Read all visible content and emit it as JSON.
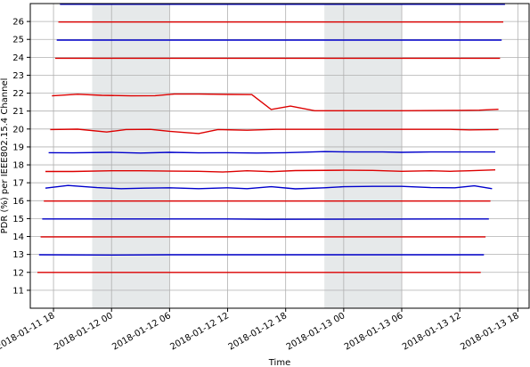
{
  "chart_data": {
    "type": "line",
    "xlabel": "Time",
    "ylabel": "PDR (%) per IEEE802.15.4 Channel",
    "x_axis": "datetime",
    "xlim": [
      "2018-01-11T15:36",
      "2018-01-13T19:10"
    ],
    "ylim": [
      10,
      27
    ],
    "grid": true,
    "legend": "none",
    "x_ticks": [
      {
        "t": "2018-01-11T18:00",
        "label": "2018-01-11 18"
      },
      {
        "t": "2018-01-12T00:00",
        "label": "2018-01-12 00"
      },
      {
        "t": "2018-01-12T06:00",
        "label": "2018-01-12 06"
      },
      {
        "t": "2018-01-12T12:00",
        "label": "2018-01-12 12"
      },
      {
        "t": "2018-01-12T18:00",
        "label": "2018-01-12 18"
      },
      {
        "t": "2018-01-13T00:00",
        "label": "2018-01-13 00"
      },
      {
        "t": "2018-01-13T06:00",
        "label": "2018-01-13 06"
      },
      {
        "t": "2018-01-13T12:00",
        "label": "2018-01-13 12"
      },
      {
        "t": "2018-01-13T18:00",
        "label": "2018-01-13 18"
      }
    ],
    "y_ticks": [
      11,
      12,
      13,
      14,
      15,
      16,
      17,
      18,
      19,
      20,
      21,
      22,
      23,
      24,
      25,
      26
    ],
    "shaded_periods": [
      {
        "start": "2018-01-11T22:00",
        "end": "2018-01-12T06:00",
        "color": "#e6e9ea"
      },
      {
        "start": "2018-01-12T22:00",
        "end": "2018-01-13T06:00",
        "color": "#e6e9ea"
      }
    ],
    "series": [
      {
        "color": "#dd0000",
        "points": [
          [
            "2018-01-11T16:20",
            12.0
          ],
          [
            "2018-01-13T14:10",
            12.0
          ]
        ]
      },
      {
        "color": "#0000cc",
        "points": [
          [
            "2018-01-11T16:30",
            12.98
          ],
          [
            "2018-01-12T00:00",
            12.97
          ],
          [
            "2018-01-12T06:00",
            12.98
          ],
          [
            "2018-01-12T12:00",
            12.98
          ],
          [
            "2018-01-12T18:00",
            12.98
          ],
          [
            "2018-01-13T00:00",
            12.98
          ],
          [
            "2018-01-13T06:00",
            12.98
          ],
          [
            "2018-01-13T12:00",
            12.98
          ],
          [
            "2018-01-13T14:30",
            12.98
          ]
        ]
      },
      {
        "color": "#dd0000",
        "points": [
          [
            "2018-01-11T16:40",
            13.98
          ],
          [
            "2018-01-13T14:40",
            13.98
          ]
        ]
      },
      {
        "color": "#0000cc",
        "points": [
          [
            "2018-01-11T16:50",
            14.98
          ],
          [
            "2018-01-12T12:00",
            14.98
          ],
          [
            "2018-01-12T16:00",
            14.96
          ],
          [
            "2018-01-13T12:00",
            14.98
          ],
          [
            "2018-01-13T15:00",
            14.98
          ]
        ]
      },
      {
        "color": "#dd0000",
        "points": [
          [
            "2018-01-11T17:00",
            15.98
          ],
          [
            "2018-01-13T15:10",
            15.98
          ]
        ]
      },
      {
        "color": "#0000cc",
        "points": [
          [
            "2018-01-11T17:10",
            16.7
          ],
          [
            "2018-01-11T19:30",
            16.85
          ],
          [
            "2018-01-11T22:30",
            16.73
          ],
          [
            "2018-01-12T01:00",
            16.67
          ],
          [
            "2018-01-12T03:30",
            16.7
          ],
          [
            "2018-01-12T06:00",
            16.72
          ],
          [
            "2018-01-12T09:00",
            16.67
          ],
          [
            "2018-01-12T12:00",
            16.72
          ],
          [
            "2018-01-12T14:00",
            16.67
          ],
          [
            "2018-01-12T16:30",
            16.78
          ],
          [
            "2018-01-12T19:00",
            16.66
          ],
          [
            "2018-01-12T22:00",
            16.72
          ],
          [
            "2018-01-13T00:00",
            16.78
          ],
          [
            "2018-01-13T03:00",
            16.8
          ],
          [
            "2018-01-13T06:00",
            16.8
          ],
          [
            "2018-01-13T09:00",
            16.73
          ],
          [
            "2018-01-13T11:30",
            16.72
          ],
          [
            "2018-01-13T13:30",
            16.83
          ],
          [
            "2018-01-13T15:20",
            16.67
          ]
        ]
      },
      {
        "color": "#dd0000",
        "points": [
          [
            "2018-01-11T17:10",
            17.63
          ],
          [
            "2018-01-11T20:00",
            17.63
          ],
          [
            "2018-01-12T00:00",
            17.67
          ],
          [
            "2018-01-12T03:00",
            17.67
          ],
          [
            "2018-01-12T06:00",
            17.65
          ],
          [
            "2018-01-12T09:00",
            17.64
          ],
          [
            "2018-01-12T11:30",
            17.6
          ],
          [
            "2018-01-12T14:00",
            17.67
          ],
          [
            "2018-01-12T16:30",
            17.62
          ],
          [
            "2018-01-12T19:00",
            17.68
          ],
          [
            "2018-01-13T00:00",
            17.7
          ],
          [
            "2018-01-13T03:00",
            17.69
          ],
          [
            "2018-01-13T06:00",
            17.64
          ],
          [
            "2018-01-13T09:00",
            17.67
          ],
          [
            "2018-01-13T11:00",
            17.64
          ],
          [
            "2018-01-13T13:00",
            17.67
          ],
          [
            "2018-01-13T15:40",
            17.72
          ]
        ]
      },
      {
        "color": "#0000cc",
        "points": [
          [
            "2018-01-11T17:30",
            18.68
          ],
          [
            "2018-01-11T20:00",
            18.67
          ],
          [
            "2018-01-12T00:00",
            18.7
          ],
          [
            "2018-01-12T03:00",
            18.66
          ],
          [
            "2018-01-12T06:00",
            18.7
          ],
          [
            "2018-01-12T09:00",
            18.67
          ],
          [
            "2018-01-12T12:00",
            18.68
          ],
          [
            "2018-01-12T15:00",
            18.66
          ],
          [
            "2018-01-12T18:00",
            18.68
          ],
          [
            "2018-01-12T22:00",
            18.74
          ],
          [
            "2018-01-13T01:00",
            18.72
          ],
          [
            "2018-01-13T04:00",
            18.72
          ],
          [
            "2018-01-13T06:00",
            18.7
          ],
          [
            "2018-01-13T09:00",
            18.72
          ],
          [
            "2018-01-13T12:00",
            18.72
          ],
          [
            "2018-01-13T15:40",
            18.72
          ]
        ]
      },
      {
        "color": "#dd0000",
        "points": [
          [
            "2018-01-11T17:40",
            19.97
          ],
          [
            "2018-01-11T20:30",
            19.99
          ],
          [
            "2018-01-11T23:30",
            19.83
          ],
          [
            "2018-01-12T01:30",
            19.97
          ],
          [
            "2018-01-12T04:00",
            19.98
          ],
          [
            "2018-01-12T06:00",
            19.87
          ],
          [
            "2018-01-12T09:00",
            19.75
          ],
          [
            "2018-01-12T11:00",
            19.97
          ],
          [
            "2018-01-12T14:00",
            19.93
          ],
          [
            "2018-01-12T17:00",
            19.98
          ],
          [
            "2018-01-13T00:00",
            19.98
          ],
          [
            "2018-01-13T06:00",
            19.98
          ],
          [
            "2018-01-13T11:00",
            19.98
          ],
          [
            "2018-01-13T13:00",
            19.95
          ],
          [
            "2018-01-13T16:00",
            19.97
          ]
        ]
      },
      {
        "color": "#dd0000",
        "points": [
          [
            "2018-01-11T17:50",
            21.85
          ],
          [
            "2018-01-11T20:30",
            21.94
          ],
          [
            "2018-01-11T23:00",
            21.88
          ],
          [
            "2018-01-12T02:00",
            21.85
          ],
          [
            "2018-01-12T04:30",
            21.86
          ],
          [
            "2018-01-12T06:30",
            21.95
          ],
          [
            "2018-01-12T09:00",
            21.95
          ],
          [
            "2018-01-12T12:00",
            21.93
          ],
          [
            "2018-01-12T14:30",
            21.92
          ],
          [
            "2018-01-12T16:30",
            21.09
          ],
          [
            "2018-01-12T18:30",
            21.28
          ],
          [
            "2018-01-12T21:00",
            21.02
          ],
          [
            "2018-01-13T00:00",
            21.02
          ],
          [
            "2018-01-13T06:00",
            21.02
          ],
          [
            "2018-01-13T12:00",
            21.04
          ],
          [
            "2018-01-13T14:00",
            21.05
          ],
          [
            "2018-01-13T16:00",
            21.1
          ]
        ]
      },
      {
        "color": "#dd0000",
        "points": [
          [
            "2018-01-11T18:10",
            23.95
          ],
          [
            "2018-01-13T16:10",
            23.95
          ]
        ]
      },
      {
        "color": "#0000cc",
        "points": [
          [
            "2018-01-11T18:20",
            24.96
          ],
          [
            "2018-01-13T16:20",
            24.96
          ]
        ]
      },
      {
        "color": "#dd0000",
        "points": [
          [
            "2018-01-11T18:30",
            25.97
          ],
          [
            "2018-01-13T16:30",
            25.97
          ]
        ]
      },
      {
        "color": "#0000cc",
        "points": [
          [
            "2018-01-11T18:40",
            26.96
          ],
          [
            "2018-01-13T16:40",
            26.96
          ]
        ]
      }
    ]
  }
}
